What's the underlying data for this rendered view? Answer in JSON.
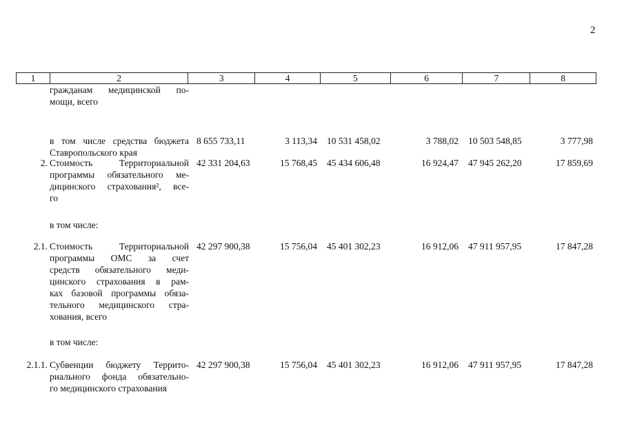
{
  "page_number": "2",
  "header": [
    "1",
    "2",
    "3",
    "4",
    "5",
    "6",
    "7",
    "8"
  ],
  "rows": [
    {
      "num": "",
      "lines": [
        "гражданам медицинской по-",
        "мощи, всего"
      ],
      "values": [
        "",
        "",
        "",
        "",
        "",
        ""
      ]
    },
    {
      "num": "",
      "lines": [
        "в том числе средства бюджета",
        "Ставропольского края"
      ],
      "values": [
        "8 655 733,11",
        "3 113,34",
        "10 531 458,02",
        "3 788,02",
        "10 503 548,85",
        "3 777,98"
      ]
    },
    {
      "num": "2.",
      "lines": [
        "Стоимость Территориальной",
        "программы обязательного ме-",
        "дицинского страхования², все-",
        "го"
      ],
      "values": [
        "42 331 204,63",
        "15 768,45",
        "45 434 606,48",
        "16 924,47",
        "47 945 262,20",
        "17 859,69"
      ]
    },
    {
      "num": "",
      "lines": [
        "в том числе:"
      ],
      "values": [
        "",
        "",
        "",
        "",
        "",
        ""
      ]
    },
    {
      "num": "2.1.",
      "lines": [
        "Стоимость Территориальной",
        "программы ОМС за счет",
        "средств обязательного меди-",
        "цинского страхования в рам-",
        "ках базовой программы обяза-",
        "тельного медицинского стра-",
        "хования, всего"
      ],
      "values": [
        "42 297 900,38",
        "15 756,04",
        "45 401 302,23",
        "16 912,06",
        "47 911 957,95",
        "17 847,28"
      ]
    },
    {
      "num": "",
      "lines": [
        "в том числе:"
      ],
      "values": [
        "",
        "",
        "",
        "",
        "",
        ""
      ]
    },
    {
      "num": "2.1.1.",
      "lines": [
        "Субвенции бюджету Террито-",
        "риального фонда обязательно-",
        "го медицинского страхования"
      ],
      "values": [
        "42 297 900,38",
        "15 756,04",
        "45 401 302,23",
        "16 912,06",
        "47 911 957,95",
        "17 847,28"
      ]
    }
  ]
}
